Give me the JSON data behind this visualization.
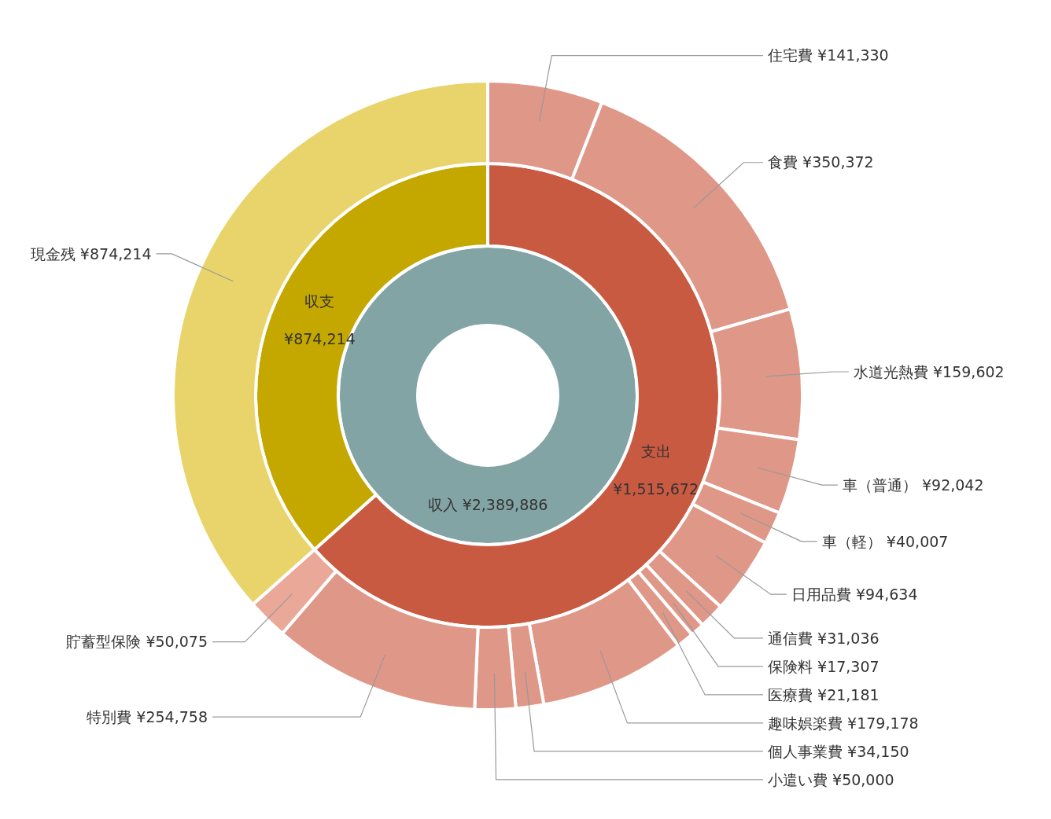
{
  "chart_data": [
    {
      "type": "donut",
      "categories": [
        "収入"
      ],
      "values": [
        2389886
      ],
      "value_labels": [
        "¥2,389,886"
      ],
      "colors": [
        "#82a4a5"
      ]
    },
    {
      "type": "donut",
      "categories": [
        "支出",
        "収支"
      ],
      "values": [
        1515672,
        874214
      ],
      "value_labels": [
        "¥1,515,672",
        "¥874,214"
      ],
      "colors": [
        "#c95a42",
        "#c4a800"
      ]
    },
    {
      "type": "donut",
      "categories": [
        "住宅費",
        "食費",
        "水道光熱費",
        "車（普通）",
        "車（軽）",
        "日用品費",
        "通信費",
        "保険料",
        "医療費",
        "趣味娯楽費",
        "個人事業費",
        "小遣い費",
        "特別費",
        "貯蓄型保険",
        "現金残"
      ],
      "values": [
        141330,
        350372,
        159602,
        92042,
        40007,
        94634,
        31036,
        17307,
        21181,
        179178,
        34150,
        50000,
        254758,
        50075,
        874214
      ],
      "value_labels": [
        "¥141,330",
        "¥350,372",
        "¥159,602",
        "¥92,042",
        "¥40,007",
        "¥94,634",
        "¥31,036",
        "¥17,307",
        "¥21,181",
        "¥179,178",
        "¥34,150",
        "¥50,000",
        "¥254,758",
        "¥50,075",
        "¥874,214"
      ],
      "colors": [
        "#df9788",
        "#df9788",
        "#df9788",
        "#df9788",
        "#df9788",
        "#df9788",
        "#df9788",
        "#df9788",
        "#df9788",
        "#df9788",
        "#df9788",
        "#df9788",
        "#df9788",
        "#eaa898",
        "#e9d46b"
      ]
    }
  ]
}
